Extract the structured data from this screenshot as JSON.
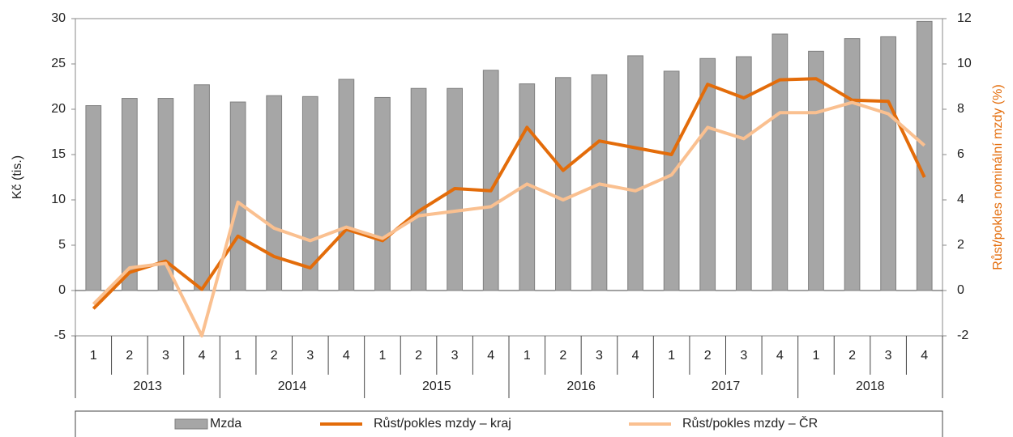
{
  "chart_data": {
    "type": "bar_line",
    "y_label": "Kč (tis.)",
    "y2_label": "Růst/pokles nominální mzdy (%)",
    "categories": [
      "1",
      "2",
      "3",
      "4",
      "1",
      "2",
      "3",
      "4",
      "1",
      "2",
      "3",
      "4",
      "1",
      "2",
      "3",
      "4",
      "1",
      "2",
      "3",
      "4",
      "1",
      "2",
      "3",
      "4"
    ],
    "groups": [
      "2013",
      "2014",
      "2015",
      "2016",
      "2017",
      "2018"
    ],
    "series": [
      {
        "name": "Mzda",
        "kind": "bar",
        "color": "#a6a6a6",
        "axis": "y",
        "values": [
          20.4,
          21.2,
          21.2,
          22.7,
          20.8,
          21.5,
          21.4,
          23.3,
          21.3,
          22.3,
          22.3,
          24.3,
          22.8,
          23.5,
          23.8,
          25.9,
          24.2,
          25.6,
          25.8,
          28.3,
          26.4,
          27.8,
          28.0,
          29.7
        ]
      },
      {
        "name": "Růst/pokles mzdy – kraj",
        "kind": "line",
        "color": "#e36c0a",
        "axis": "y2",
        "values": [
          -0.8,
          0.8,
          1.3,
          0.05,
          2.4,
          1.5,
          1.0,
          2.7,
          2.2,
          3.5,
          4.5,
          4.4,
          7.2,
          5.3,
          6.6,
          6.3,
          6.0,
          9.1,
          8.5,
          9.3,
          9.35,
          8.4,
          8.35,
          5.0
        ]
      },
      {
        "name": "Růst/pokles mzdy – ČR",
        "kind": "line",
        "color": "#fac090",
        "axis": "y2",
        "values": [
          -0.6,
          1.0,
          1.2,
          -2.0,
          3.9,
          2.75,
          2.2,
          2.8,
          2.3,
          3.3,
          3.5,
          3.7,
          4.7,
          4.0,
          4.7,
          4.4,
          5.1,
          7.2,
          6.7,
          7.85,
          7.85,
          8.3,
          7.8,
          6.4
        ]
      }
    ],
    "ylim": [
      -5,
      30
    ],
    "yticks": [
      -5,
      0,
      5,
      10,
      15,
      20,
      25,
      30
    ],
    "y2lim": [
      -2,
      12
    ],
    "y2ticks": [
      -2,
      0,
      2,
      4,
      6,
      8,
      10,
      12
    ],
    "y2_color": "#e36c0a",
    "grid": false
  }
}
